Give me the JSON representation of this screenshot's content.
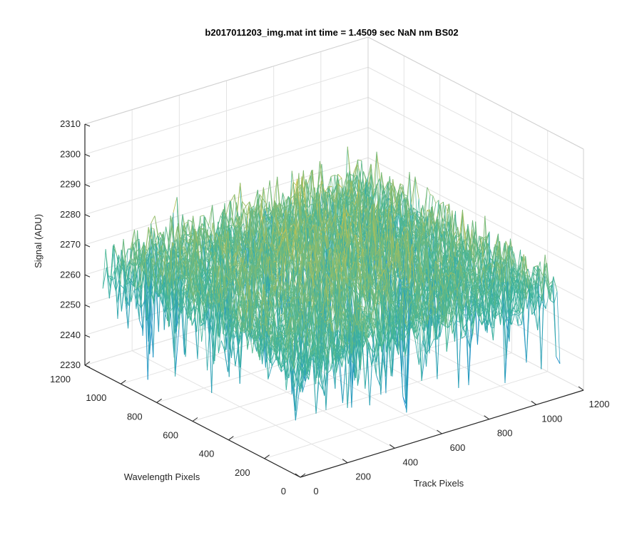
{
  "chart_data": {
    "type": "surface",
    "title": "b2017011203_img.mat int time = 1.4509 sec  NaN nm BS02",
    "xlabel": "Track Pixels",
    "ylabel": "Wavelength Pixels",
    "zlabel": "Signal (ADU)",
    "xlim": [
      0,
      1200
    ],
    "ylim": [
      0,
      1200
    ],
    "zlim": [
      2230,
      2310
    ],
    "xticks": [
      "0",
      "200",
      "400",
      "600",
      "800",
      "1000",
      "1200"
    ],
    "yticks": [
      "0",
      "200",
      "400",
      "600",
      "800",
      "1000",
      "1200"
    ],
    "zticks": [
      "2230",
      "2240",
      "2250",
      "2260",
      "2270",
      "2280",
      "2290",
      "2300",
      "2310"
    ],
    "data_extent": {
      "x": [
        0,
        1100
      ],
      "y": [
        0,
        1100
      ]
    },
    "signal_mean": 2266,
    "signal_range": [
      2232,
      2302
    ],
    "colormap": "parula",
    "colors": {
      "low": "#1f8fd0",
      "mid": "#3fb59a",
      "high": "#e9c43a"
    },
    "grid": "on",
    "view": "3d"
  }
}
